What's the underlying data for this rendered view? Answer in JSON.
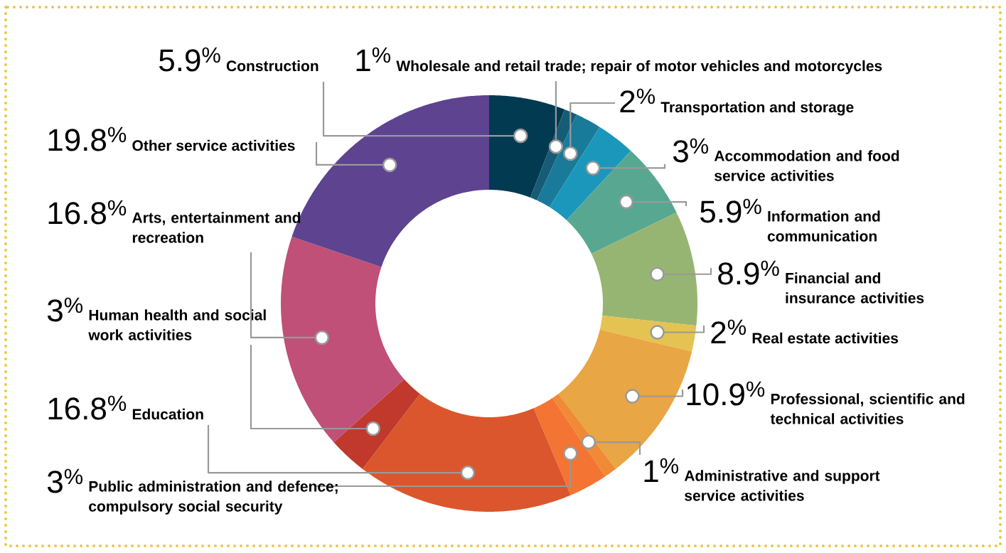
{
  "chart_data": {
    "type": "donut",
    "categories": [
      "Construction",
      "Wholesale and retail trade; repair of motor vehicles and motorcycles",
      "Transportation and storage",
      "Accommodation and food service activities",
      "Information and communication",
      "Financial and insurance activities",
      "Real estate activities",
      "Professional, scientific and technical activities",
      "Administrative and support service activities",
      "Public administration and defence; compulsory social security",
      "Education",
      "Human health and social work activities",
      "Arts, entertainment and recreation",
      "Other service activities"
    ],
    "values": [
      5.9,
      1,
      2,
      3,
      5.9,
      8.9,
      2,
      10.9,
      1,
      3,
      16.8,
      3,
      16.8,
      19.8
    ],
    "value_labels": [
      "5.9$^{%}$",
      "1$^{%}$",
      "2$^{%}$",
      "3$^{%}$",
      "5.9$^{%}$",
      "8.9$^{%}$",
      "2$^{%}$",
      "10.9$^{%}$",
      "1$^{%}$",
      "3$^{%}$",
      "16.8$^{%}$",
      "3$^{%}$",
      "16.8$^{%}$",
      "19.8$^{%}$"
    ],
    "colors": [
      "#023a52",
      "#175c76",
      "#1a7a99",
      "#1b97bb",
      "#58a891",
      "#97b572",
      "#e4c352",
      "#e8a644",
      "#f08a36",
      "#f37433",
      "#db562c",
      "#c0392c",
      "#c05077",
      "#5d4390"
    ]
  }
}
